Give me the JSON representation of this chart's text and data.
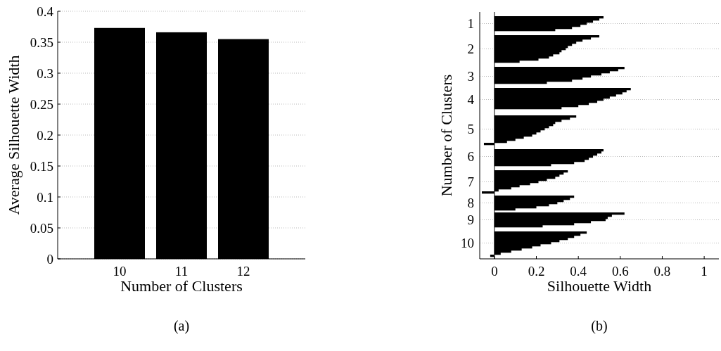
{
  "chart_data": [
    {
      "type": "bar",
      "categories": [
        "10",
        "11",
        "12"
      ],
      "values": [
        0.373,
        0.366,
        0.355
      ],
      "color": "#000000",
      "xlabel": "Number of Clusters",
      "ylabel": "Average Silhouette Width",
      "ylim": [
        0,
        0.4
      ],
      "yticks": [
        0,
        0.05,
        0.1,
        0.15,
        0.2,
        0.25,
        0.3,
        0.35,
        0.4
      ],
      "grid": "y",
      "annotations": [
        "(a)"
      ]
    },
    {
      "type": "bar",
      "orientation": "horizontal",
      "xlabel": "Silhouette Width",
      "ylabel": "Number of Clusters",
      "xlim": [
        -0.07,
        1.07
      ],
      "xticks": [
        0,
        0.2,
        0.4,
        0.6,
        0.8,
        1
      ],
      "color": "#000000",
      "grid": "y",
      "ref_lines": [
        {
          "axis": "x",
          "value": 0
        }
      ],
      "annotations": [
        "(b)"
      ],
      "categories": [
        null,
        null,
        null,
        null,
        null,
        "1",
        null,
        null,
        null,
        null,
        null,
        null,
        null,
        null,
        null,
        null,
        null,
        "2",
        null,
        null,
        null,
        null,
        null,
        null,
        null,
        null,
        null,
        null,
        null,
        null,
        "3",
        null,
        null,
        null,
        null,
        null,
        null,
        null,
        null,
        null,
        null,
        "4",
        null,
        null,
        null,
        null,
        null,
        null,
        null,
        null,
        null,
        null,
        null,
        null,
        null,
        "5",
        null,
        null,
        null,
        null,
        null,
        null,
        null,
        null,
        null,
        null,
        null,
        null,
        "6",
        null,
        null,
        null,
        null,
        null,
        null,
        null,
        null,
        null,
        null,
        null,
        "7",
        null,
        null,
        null,
        null,
        null,
        null,
        null,
        null,
        null,
        "8",
        null,
        null,
        null,
        null,
        null,
        null,
        null,
        "9",
        null,
        null,
        null,
        null,
        null,
        null,
        null,
        null,
        null,
        null,
        "10",
        null,
        null,
        null,
        null,
        null,
        null,
        null
      ],
      "values": [
        null,
        null,
        0.52,
        0.5,
        0.47,
        0.44,
        0.41,
        0.37,
        0.29,
        null,
        null,
        0.5,
        0.46,
        0.42,
        0.39,
        0.37,
        0.35,
        0.34,
        0.32,
        0.31,
        0.28,
        0.26,
        0.21,
        0.12,
        null,
        null,
        0.62,
        0.59,
        0.55,
        0.51,
        0.46,
        0.42,
        0.37,
        0.25,
        null,
        null,
        0.65,
        0.63,
        0.61,
        0.58,
        0.55,
        0.52,
        0.49,
        0.45,
        0.4,
        0.32,
        null,
        null,
        null,
        0.39,
        0.36,
        0.32,
        0.29,
        0.28,
        0.26,
        0.24,
        0.22,
        0.2,
        0.18,
        0.14,
        0.1,
        0.06,
        -0.05,
        null,
        null,
        0.52,
        0.51,
        0.49,
        0.47,
        0.45,
        0.43,
        0.38,
        0.27,
        null,
        null,
        0.35,
        0.33,
        0.31,
        0.29,
        0.25,
        0.21,
        0.17,
        0.12,
        0.08,
        0.02,
        -0.06,
        null,
        0.38,
        0.36,
        0.33,
        0.3,
        0.26,
        0.2,
        0.1,
        null,
        0.62,
        0.56,
        0.54,
        0.53,
        0.46,
        0.38,
        0.23,
        null,
        null,
        0.44,
        0.41,
        0.38,
        0.35,
        0.31,
        0.27,
        0.22,
        0.18,
        0.13,
        0.08,
        0.03,
        -0.02,
        null
      ]
    }
  ]
}
